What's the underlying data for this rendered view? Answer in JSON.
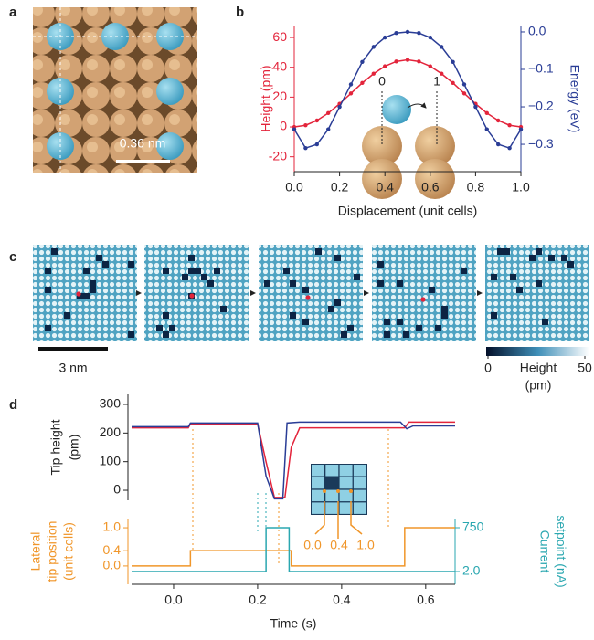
{
  "chart_data": [
    {
      "type": "image",
      "panel": "a",
      "scale_bar": "0.36 nm"
    },
    {
      "type": "line",
      "panel": "b",
      "x": [
        0,
        0.05,
        0.1,
        0.15,
        0.2,
        0.25,
        0.3,
        0.35,
        0.4,
        0.45,
        0.5,
        0.55,
        0.6,
        0.65,
        0.7,
        0.75,
        0.8,
        0.85,
        0.9,
        0.95,
        1.0
      ],
      "xlim": [
        0,
        1
      ],
      "xticks": [
        {
          "value": 0,
          "label": "0.0"
        },
        {
          "value": 0.2,
          "label": "0.2"
        },
        {
          "value": 0.4,
          "label": "0.4"
        },
        {
          "value": 0.6,
          "label": "0.6"
        },
        {
          "value": 0.8,
          "label": "0.8"
        },
        {
          "value": 1,
          "label": "1.0"
        }
      ],
      "xlabel": "Displacement (unit cells)",
      "ylim": [
        -30,
        68
      ],
      "yticks": [
        -20,
        0,
        20,
        40,
        60
      ],
      "ylabel": "Height (pm)",
      "y2lim": [
        -0.373,
        0.017
      ],
      "y2ticks": [
        {
          "value": 0,
          "label": "0.0"
        },
        {
          "value": -0.1,
          "label": "−0.1"
        },
        {
          "value": -0.2,
          "label": "−0.2"
        },
        {
          "value": -0.3,
          "label": "−0.3"
        }
      ],
      "y2label": "Energy (eV)",
      "series": [
        {
          "color": "#e3243b",
          "values": [
            0,
            1.1,
            4.3,
            9.3,
            15.5,
            22.5,
            29.5,
            35.7,
            40.7,
            43.9,
            45,
            43.9,
            40.7,
            35.7,
            29.5,
            22.5,
            15.5,
            9.3,
            4.3,
            1.1,
            0
          ]
        },
        {
          "color": "#2a3d96",
          "axis": "y2",
          "values": [
            -0.26,
            -0.31,
            -0.3,
            -0.26,
            -0.2,
            -0.14,
            -0.08,
            -0.04,
            -0.015,
            -0.003,
            0.0,
            -0.003,
            -0.015,
            -0.04,
            -0.08,
            -0.14,
            -0.2,
            -0.26,
            -0.3,
            -0.31,
            -0.26
          ]
        }
      ],
      "inset_labels": [
        "0",
        "1"
      ]
    },
    {
      "type": "image-sequence",
      "panel": "c",
      "scale_bar": "3 nm",
      "colorbar": {
        "ticks": [
          0,
          50
        ],
        "label": [
          "Height",
          "(pm)"
        ]
      }
    },
    {
      "type": "line",
      "panel": "d",
      "xlim": [
        -0.1,
        0.67
      ],
      "ylim": [
        -35,
        335
      ],
      "yticks": [
        0,
        100,
        200,
        300
      ],
      "ylabel": [
        "Tip height",
        "(pm)"
      ],
      "series": [
        {
          "color": "#e3243b",
          "x": [
            -0.1,
            0.035,
            0.04,
            0.2,
            0.22,
            0.24,
            0.265,
            0.28,
            0.3,
            0.55,
            0.56,
            0.67
          ],
          "values": [
            218,
            218,
            232,
            232,
            100,
            -25,
            -25,
            150,
            218,
            218,
            238,
            238
          ]
        },
        {
          "color": "#2a3d96",
          "x": [
            -0.1,
            0.035,
            0.04,
            0.2,
            0.22,
            0.24,
            0.26,
            0.27,
            0.3,
            0.54,
            0.555,
            0.57,
            0.67
          ],
          "values": [
            222,
            222,
            235,
            235,
            50,
            -30,
            -30,
            235,
            238,
            238,
            215,
            225,
            225
          ]
        }
      ]
    },
    {
      "type": "line",
      "xlim": [
        -0.1,
        0.67
      ],
      "xticks": [
        {
          "value": 0,
          "label": "0.0"
        },
        {
          "value": 0.2,
          "label": "0.2"
        },
        {
          "value": 0.4,
          "label": "0.4"
        },
        {
          "value": 0.6,
          "label": "0.6"
        }
      ],
      "xlabel": "Time (s)",
      "ylim": [
        -0.48,
        1.24
      ],
      "yticks": [
        {
          "value": 0,
          "label": "0.0"
        },
        {
          "value": 0.4,
          "label": "0.4"
        },
        {
          "value": 1,
          "label": "1.0"
        }
      ],
      "ylabel": [
        "Lateral",
        "tip position",
        "(unit cells)"
      ],
      "y2lim": [
        -216,
        906
      ],
      "y2ticks": [
        {
          "value": 2,
          "label": "2.0"
        },
        750
      ],
      "y2label": [
        "Current",
        "setpoint (nA)"
      ],
      "series": [
        {
          "color": "#f0962a",
          "x": [
            -0.1,
            0.04,
            0.04,
            0.28,
            0.28,
            0.55,
            0.55,
            0.67
          ],
          "values": [
            0,
            0,
            0.4,
            0.4,
            0,
            0,
            1,
            1
          ]
        },
        {
          "color": "#2aa7b0",
          "axis": "y2",
          "x": [
            -0.1,
            0.22,
            0.22,
            0.275,
            0.275,
            0.67
          ],
          "values": [
            2,
            2,
            750,
            750,
            2,
            2
          ]
        }
      ],
      "inset_labels": [
        "0.0",
        "0.4",
        "1.0"
      ]
    }
  ]
}
